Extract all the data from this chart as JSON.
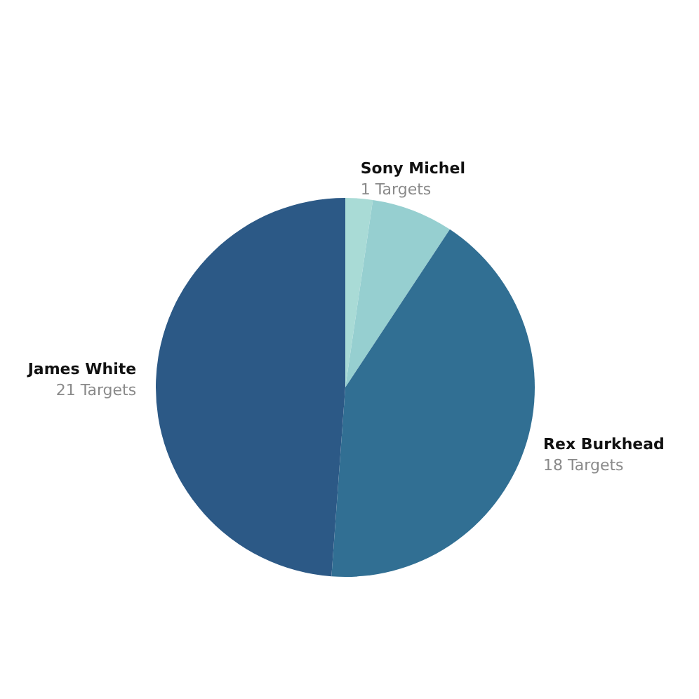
{
  "chart_data": {
    "type": "pie",
    "categories": [
      "Sony Michel",
      null,
      "Rex Burkhead",
      "James White"
    ],
    "values": [
      1,
      3,
      18,
      21
    ],
    "colors": [
      "#a9dbd6",
      "#96cfd0",
      "#316f93",
      "#2c5986"
    ],
    "value_labels": [
      "1 Targets",
      null,
      "18 Targets",
      "21 Targets"
    ]
  }
}
